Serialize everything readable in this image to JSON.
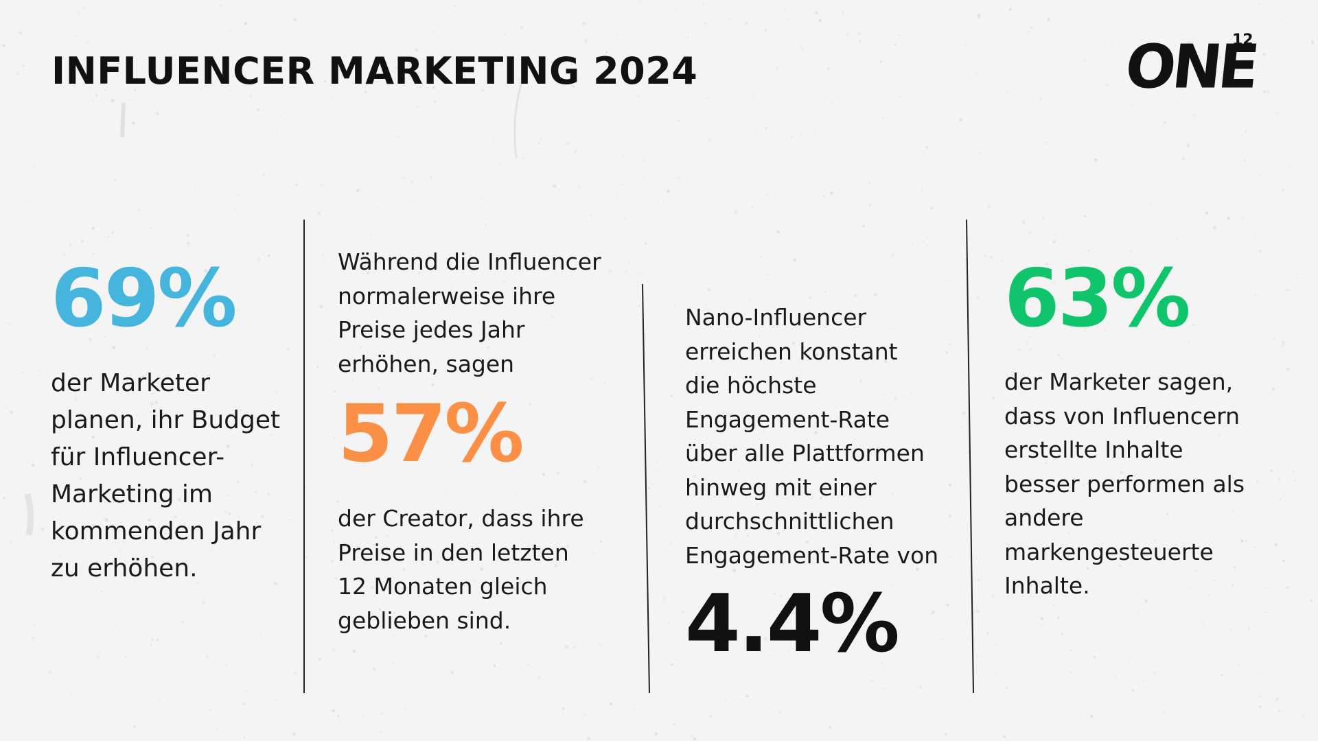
{
  "header": {
    "title": "INFLUENCER MARKETING 2024",
    "logo_text": "ONE",
    "logo_superscript": "12"
  },
  "colors": {
    "background": "#f4f4f4",
    "blue": "#45b5dd",
    "orange": "#fb8f45",
    "green": "#10c46c",
    "text": "#111111"
  },
  "stats": [
    {
      "value": "69%",
      "lines": [
        "der Marketer",
        "planen, ihr Budget",
        "für Influencer-",
        "Marketing im",
        "kommenden Jahr",
        "zu erhöhen."
      ]
    },
    {
      "intro_lines": [
        "Während die Influencer",
        "normalerweise ihre",
        "Preise jedes Jahr",
        "erhöhen, sagen"
      ],
      "value": "57%",
      "lines": [
        "der Creator, dass ihre",
        "Preise in den letzten",
        "12 Monaten gleich",
        "geblieben sind."
      ]
    },
    {
      "intro_lines": [
        "Nano-Influencer",
        "erreichen konstant",
        "die höchste",
        "Engagement-Rate",
        "über alle Plattformen",
        "hinweg mit einer",
        "durchschnittlichen",
        "Engagement-Rate von"
      ],
      "value": "4.4%"
    },
    {
      "value": "63%",
      "lines": [
        "der Marketer sagen,",
        "dass von Influencern",
        "erstellte Inhalte",
        "besser performen als",
        "andere",
        "markengesteuerte",
        "Inhalte."
      ]
    }
  ]
}
